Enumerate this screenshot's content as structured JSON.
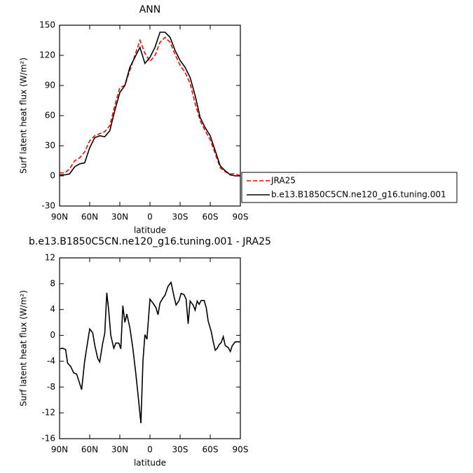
{
  "chart_data": [
    {
      "type": "line",
      "title": "ANN",
      "xlabel": "latitude",
      "ylabel": "Surf latent heat flux (W/m²)",
      "x": [
        90,
        85,
        80,
        75,
        70,
        65,
        60,
        55,
        50,
        45,
        40,
        35,
        30,
        25,
        20,
        15,
        10,
        5,
        0,
        -5,
        -10,
        -15,
        -20,
        -25,
        -30,
        -35,
        -40,
        -45,
        -50,
        -55,
        -60,
        -65,
        -70,
        -75,
        -80,
        -85,
        -90
      ],
      "series": [
        {
          "name": "JRA25",
          "color": "#ff0000",
          "dash": "dashed",
          "values": [
            3,
            3,
            7,
            15,
            18,
            24,
            35,
            40,
            42,
            44,
            50,
            70,
            88,
            90,
            105,
            120,
            135,
            122,
            114,
            120,
            133,
            138,
            133,
            121,
            110,
            103,
            92,
            72,
            55,
            45,
            36,
            22,
            8,
            4,
            2,
            2,
            0
          ]
        },
        {
          "name": "b.e13.B1850C5CN.ne120_g16.tuning.001",
          "color": "#000000",
          "dash": "solid",
          "values": [
            1,
            1,
            2,
            9,
            12,
            13,
            28,
            38,
            40,
            39,
            45,
            65,
            83,
            90,
            108,
            118,
            128,
            112,
            118,
            128,
            143,
            143,
            138,
            125,
            115,
            108,
            98,
            80,
            58,
            48,
            40,
            25,
            10,
            5,
            1,
            0,
            0
          ]
        }
      ],
      "xlim": [
        90,
        -90
      ],
      "ylim": [
        -30,
        150
      ],
      "xticks": [
        {
          "value": 90,
          "label": "90N"
        },
        {
          "value": 60,
          "label": "60N"
        },
        {
          "value": 30,
          "label": "30N"
        },
        0,
        {
          "value": -30,
          "label": "30S"
        },
        {
          "value": -60,
          "label": "60S"
        },
        {
          "value": -90,
          "label": "90S"
        }
      ],
      "yticks": [
        -30,
        0,
        30,
        60,
        90,
        120,
        150
      ],
      "legend": "right"
    },
    {
      "type": "line",
      "title": "b.e13.B1850C5CN.ne120_g16.tuning.001 - JRA25",
      "xlabel": "latitude",
      "ylabel": "Surf latent heat flux (W/m²)",
      "x": [
        90,
        87,
        84,
        82,
        79,
        76,
        73,
        68,
        65,
        62,
        60,
        57,
        55,
        52,
        50,
        47,
        45,
        43,
        41,
        39,
        36,
        34,
        31,
        29,
        27,
        25,
        23,
        20,
        17,
        14,
        12,
        9,
        7,
        5,
        3,
        0,
        -3,
        -6,
        -8,
        -10,
        -13,
        -15,
        -18,
        -21,
        -24,
        -26,
        -29,
        -31,
        -34,
        -36,
        -38,
        -40,
        -43,
        -45,
        -47,
        -49,
        -51,
        -54,
        -56,
        -58,
        -61,
        -63,
        -65,
        -67,
        -69,
        -71,
        -73,
        -75,
        -78,
        -80,
        -82,
        -85,
        -90
      ],
      "series": [
        {
          "color": "#000000",
          "dash": "solid",
          "values": [
            -2.1,
            -2,
            -2.2,
            -4.3,
            -4.8,
            -5.8,
            -6,
            -8.4,
            -4,
            -1,
            1,
            0.4,
            -1.5,
            -3.6,
            -4.1,
            -1.2,
            0.3,
            6.6,
            3.8,
            0,
            -2,
            -1.2,
            -1.2,
            -2.1,
            4.6,
            2,
            3.3,
            1.2,
            -2,
            -6,
            -9,
            -13.6,
            -4,
            0.1,
            -0.6,
            5.6,
            5,
            4.3,
            3.2,
            5,
            5.8,
            6.2,
            7.6,
            8.2,
            6,
            4.7,
            5.4,
            6.5,
            6.3,
            5.6,
            1.8,
            5.3,
            4.7,
            3.9,
            5.3,
            4.8,
            5.4,
            5.4,
            4.3,
            2.2,
            0.6,
            -1,
            -2.3,
            -2,
            -1.4,
            -1.1,
            -0.2,
            -1.6,
            -1.9,
            -2.5,
            -1.6,
            -1,
            -1
          ]
        }
      ],
      "xlim": [
        90,
        -90
      ],
      "ylim": [
        -16,
        12
      ],
      "xticks": [
        {
          "value": 90,
          "label": "90N"
        },
        {
          "value": 60,
          "label": "60N"
        },
        {
          "value": 30,
          "label": "30N"
        },
        0,
        {
          "value": -30,
          "label": "30S"
        },
        {
          "value": -60,
          "label": "60S"
        },
        {
          "value": -90,
          "label": "90S"
        }
      ],
      "yticks": [
        -16,
        -12,
        -8,
        -4,
        0,
        4,
        8,
        12
      ]
    }
  ]
}
